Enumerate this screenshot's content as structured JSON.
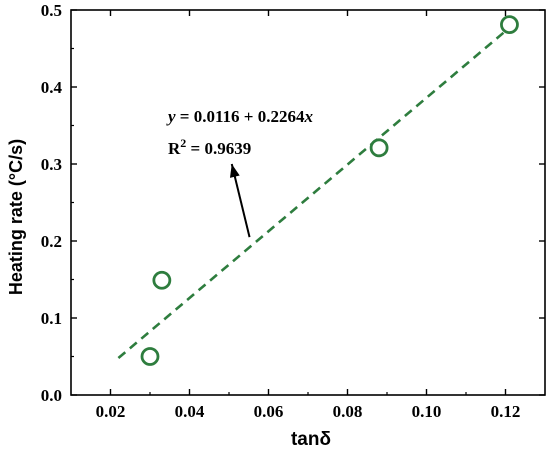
{
  "chart_data": {
    "type": "scatter",
    "xlabel": "tanδ",
    "ylabel": "Heating rate (°C/s)",
    "xlim": [
      0.01,
      0.13
    ],
    "ylim": [
      0.0,
      0.5
    ],
    "xticks": [
      0.02,
      0.04,
      0.06,
      0.08,
      0.1,
      0.12
    ],
    "xtick_labels": [
      "0.02",
      "0.04",
      "0.06",
      "0.08",
      "0.10",
      "0.12"
    ],
    "yticks": [
      0.0,
      0.1,
      0.2,
      0.3,
      0.4,
      0.5
    ],
    "ytick_labels": [
      "0.0",
      "0.1",
      "0.2",
      "0.3",
      "0.4",
      "0.5"
    ],
    "grid": false,
    "series": [
      {
        "marker": "open-circle",
        "color": "#2e7d3e",
        "points": [
          {
            "x": 0.03,
            "y": 0.05
          },
          {
            "x": 0.033,
            "y": 0.149
          },
          {
            "x": 0.088,
            "y": 0.321
          },
          {
            "x": 0.121,
            "y": 0.481
          }
        ]
      }
    ],
    "fit": {
      "style": "dashed",
      "color": "#2e7d3e",
      "x_start": 0.022,
      "x_end": 0.121,
      "y_start": 0.048,
      "y_end": 0.477
    },
    "annotation": {
      "equation_y": "y",
      "equation_rest": " = 0.0116 + 0.2264",
      "equation_x": "x",
      "r2_label": "R",
      "r2_sup": "2",
      "r2_value": " = 0.9639",
      "arrow_from": {
        "x": 0.0552,
        "y": 0.205
      },
      "arrow_to": {
        "x": 0.0507,
        "y": 0.3
      }
    }
  }
}
